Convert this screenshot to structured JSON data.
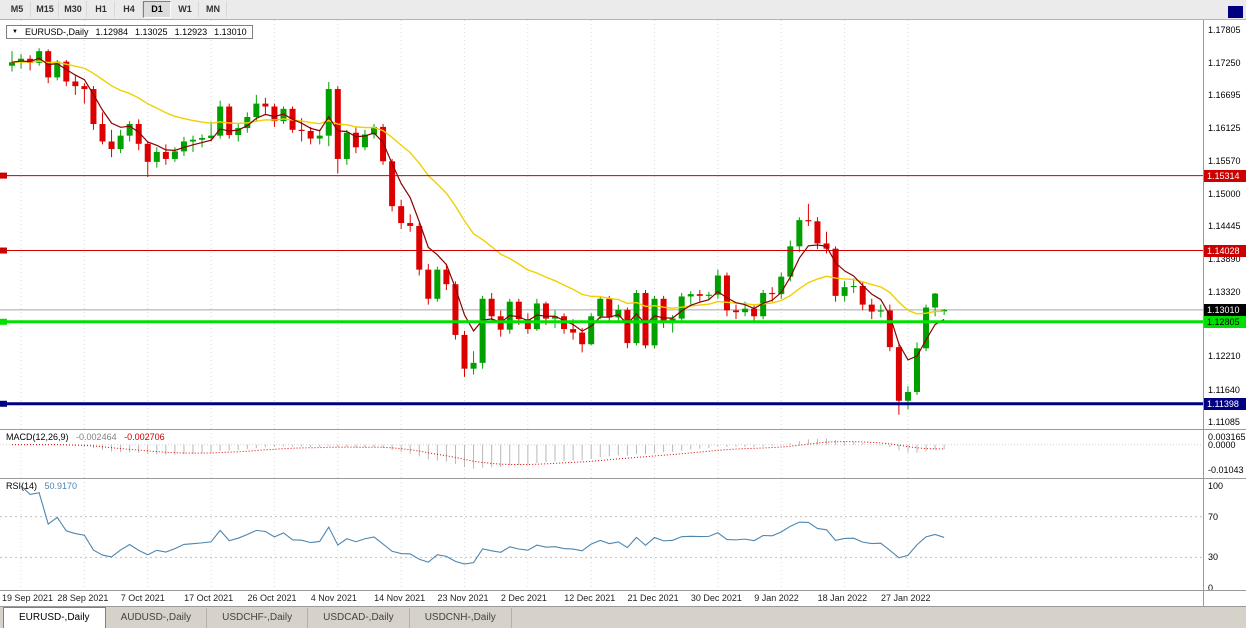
{
  "colors": {
    "up": "#00a000",
    "down": "#dd0000",
    "ma_fast": "#8b0000",
    "ma_slow": "#f0d000",
    "grid": "#d9d9d9",
    "cur_line": "#a8a8a8",
    "macd_hist": "#b8b8b8",
    "macd_signal": "#e00000",
    "rsi_line": "#4d86b0",
    "guide": "#c0c0c0"
  },
  "toolbar": {
    "timeframes": [
      "M5",
      "M15",
      "M30",
      "H1",
      "H4",
      "D1",
      "W1",
      "MN"
    ],
    "active": "D1"
  },
  "chart": {
    "symbol": "EURUSD-,Daily",
    "open": "1.12984",
    "high": "1.13025",
    "low": "1.12923",
    "close": "1.13010",
    "y_labels": [
      {
        "label": "1.17805",
        "v": 1.17805
      },
      {
        "label": "1.17250",
        "v": 1.1725
      },
      {
        "label": "1.16695",
        "v": 1.16695
      },
      {
        "label": "1.16125",
        "v": 1.16125
      },
      {
        "label": "1.15570",
        "v": 1.1557
      },
      {
        "label": "1.15000",
        "v": 1.15
      },
      {
        "label": "1.14445",
        "v": 1.14445
      },
      {
        "label": "1.13890",
        "v": 1.1389
      },
      {
        "label": "1.13320",
        "v": 1.1332
      },
      {
        "label": "1.12210",
        "v": 1.1221
      },
      {
        "label": "1.11640",
        "v": 1.1164
      },
      {
        "label": "1.11085",
        "v": 1.11085
      }
    ],
    "levels": [
      {
        "value": 1.15314,
        "label": "1.15314",
        "type": "resistance",
        "color": "#cc0000",
        "text": "#ffffff",
        "width": 1
      },
      {
        "value": 1.14028,
        "label": "1.14028",
        "type": "resistance",
        "color": "#cc0000",
        "text": "#ffffff",
        "width": 1
      },
      {
        "value": 1.12805,
        "label": "1.12805",
        "type": "support",
        "color": "#00e000",
        "text": "#000000",
        "width": 3
      },
      {
        "value": 1.11398,
        "label": "1.11398",
        "type": "support",
        "color": "#000080",
        "text": "#ffffff",
        "width": 3
      }
    ],
    "current": {
      "value": 1.1301,
      "label": "1.13010",
      "bg": "#000000",
      "text": "#ffffff"
    },
    "x_labels": [
      {
        "label": "19 Sep 2021",
        "i": 1
      },
      {
        "label": "28 Sep 2021",
        "i": 8
      },
      {
        "label": "7 Oct 2021",
        "i": 15
      },
      {
        "label": "17 Oct 2021",
        "i": 22
      },
      {
        "label": "26 Oct 2021",
        "i": 29
      },
      {
        "label": "4 Nov 2021",
        "i": 36
      },
      {
        "label": "14 Nov 2021",
        "i": 43
      },
      {
        "label": "23 Nov 2021",
        "i": 50
      },
      {
        "label": "2 Dec 2021",
        "i": 57
      },
      {
        "label": "12 Dec 2021",
        "i": 64
      },
      {
        "label": "21 Dec 2021",
        "i": 71
      },
      {
        "label": "30 Dec 2021",
        "i": 78
      },
      {
        "label": "9 Jan 2022",
        "i": 85
      },
      {
        "label": "18 Jan 2022",
        "i": 92
      },
      {
        "label": "27 Jan 2022",
        "i": 99
      }
    ],
    "candles": [
      [
        1.172,
        1.1745,
        1.171,
        1.1726
      ],
      [
        1.1726,
        1.174,
        1.1715,
        1.1732
      ],
      [
        1.1732,
        1.1738,
        1.1712,
        1.1725
      ],
      [
        1.1725,
        1.175,
        1.172,
        1.1745
      ],
      [
        1.1745,
        1.1748,
        1.169,
        1.17
      ],
      [
        1.17,
        1.173,
        1.1695,
        1.1727
      ],
      [
        1.1727,
        1.173,
        1.1685,
        1.1693
      ],
      [
        1.1693,
        1.1705,
        1.167,
        1.1685
      ],
      [
        1.1685,
        1.169,
        1.1655,
        1.168
      ],
      [
        1.168,
        1.1685,
        1.161,
        1.162
      ],
      [
        1.162,
        1.164,
        1.1585,
        1.159
      ],
      [
        1.159,
        1.161,
        1.1563,
        1.1577
      ],
      [
        1.1577,
        1.161,
        1.157,
        1.16
      ],
      [
        1.16,
        1.1625,
        1.159,
        1.162
      ],
      [
        1.162,
        1.1628,
        1.1575,
        1.1586
      ],
      [
        1.1586,
        1.159,
        1.1529,
        1.1555
      ],
      [
        1.1555,
        1.158,
        1.1545,
        1.1572
      ],
      [
        1.1572,
        1.1585,
        1.155,
        1.156
      ],
      [
        1.156,
        1.158,
        1.1555,
        1.1573
      ],
      [
        1.1573,
        1.1598,
        1.1565,
        1.159
      ],
      [
        1.159,
        1.16,
        1.1572,
        1.1593
      ],
      [
        1.1593,
        1.1602,
        1.158,
        1.1596
      ],
      [
        1.1596,
        1.1624,
        1.159,
        1.16
      ],
      [
        1.16,
        1.166,
        1.1595,
        1.165
      ],
      [
        1.165,
        1.1655,
        1.1595,
        1.1601
      ],
      [
        1.1601,
        1.1622,
        1.159,
        1.1613
      ],
      [
        1.1613,
        1.164,
        1.1605,
        1.1632
      ],
      [
        1.1632,
        1.167,
        1.1625,
        1.1655
      ],
      [
        1.1655,
        1.1665,
        1.1635,
        1.165
      ],
      [
        1.165,
        1.1655,
        1.1615,
        1.1625
      ],
      [
        1.1625,
        1.165,
        1.162,
        1.1646
      ],
      [
        1.1646,
        1.165,
        1.1605,
        1.161
      ],
      [
        1.161,
        1.163,
        1.159,
        1.1608
      ],
      [
        1.1608,
        1.1615,
        1.1585,
        1.1595
      ],
      [
        1.1595,
        1.161,
        1.1585,
        1.16
      ],
      [
        1.16,
        1.1692,
        1.1582,
        1.168
      ],
      [
        1.168,
        1.1685,
        1.1535,
        1.156
      ],
      [
        1.156,
        1.161,
        1.155,
        1.1605
      ],
      [
        1.1605,
        1.1615,
        1.157,
        1.158
      ],
      [
        1.158,
        1.161,
        1.1575,
        1.1602
      ],
      [
        1.1602,
        1.162,
        1.1595,
        1.1615
      ],
      [
        1.1615,
        1.162,
        1.155,
        1.1556
      ],
      [
        1.1556,
        1.156,
        1.147,
        1.1479
      ],
      [
        1.1479,
        1.149,
        1.144,
        1.145
      ],
      [
        1.145,
        1.1465,
        1.1435,
        1.1445
      ],
      [
        1.1445,
        1.145,
        1.136,
        1.137
      ],
      [
        1.137,
        1.138,
        1.131,
        1.132
      ],
      [
        1.132,
        1.1375,
        1.1315,
        1.137
      ],
      [
        1.137,
        1.138,
        1.1335,
        1.1345
      ],
      [
        1.1345,
        1.135,
        1.125,
        1.1258
      ],
      [
        1.1258,
        1.1265,
        1.1186,
        1.12
      ],
      [
        1.12,
        1.123,
        1.119,
        1.121
      ],
      [
        1.121,
        1.1325,
        1.12,
        1.132
      ],
      [
        1.132,
        1.133,
        1.128,
        1.129
      ],
      [
        1.129,
        1.13,
        1.1255,
        1.1267
      ],
      [
        1.1267,
        1.132,
        1.126,
        1.1315
      ],
      [
        1.1315,
        1.132,
        1.1275,
        1.1285
      ],
      [
        1.1285,
        1.1295,
        1.126,
        1.1268
      ],
      [
        1.1268,
        1.132,
        1.1265,
        1.1312
      ],
      [
        1.1312,
        1.1315,
        1.1275,
        1.1286
      ],
      [
        1.1286,
        1.13,
        1.127,
        1.129
      ],
      [
        1.129,
        1.1295,
        1.126,
        1.1268
      ],
      [
        1.1268,
        1.1285,
        1.125,
        1.1262
      ],
      [
        1.1262,
        1.127,
        1.1228,
        1.1242
      ],
      [
        1.1242,
        1.1295,
        1.124,
        1.129
      ],
      [
        1.129,
        1.1325,
        1.1285,
        1.132
      ],
      [
        1.132,
        1.1325,
        1.128,
        1.1288
      ],
      [
        1.1288,
        1.131,
        1.128,
        1.1301
      ],
      [
        1.1301,
        1.1305,
        1.1235,
        1.1244
      ],
      [
        1.1244,
        1.1335,
        1.124,
        1.133
      ],
      [
        1.133,
        1.1335,
        1.1235,
        1.124
      ],
      [
        1.124,
        1.1325,
        1.1235,
        1.132
      ],
      [
        1.132,
        1.1325,
        1.127,
        1.128
      ],
      [
        1.128,
        1.1292,
        1.1262,
        1.1286
      ],
      [
        1.1286,
        1.133,
        1.128,
        1.1324
      ],
      [
        1.1324,
        1.1333,
        1.131,
        1.1328
      ],
      [
        1.1328,
        1.1335,
        1.1315,
        1.1325
      ],
      [
        1.1325,
        1.1332,
        1.1318,
        1.1327
      ],
      [
        1.1327,
        1.137,
        1.132,
        1.136
      ],
      [
        1.136,
        1.1365,
        1.129,
        1.13
      ],
      [
        1.13,
        1.131,
        1.1285,
        1.1297
      ],
      [
        1.1297,
        1.1315,
        1.129,
        1.1303
      ],
      [
        1.1303,
        1.131,
        1.128,
        1.129
      ],
      [
        1.129,
        1.1335,
        1.1285,
        1.133
      ],
      [
        1.133,
        1.134,
        1.1315,
        1.1328
      ],
      [
        1.1328,
        1.1365,
        1.132,
        1.1358
      ],
      [
        1.1358,
        1.142,
        1.135,
        1.141
      ],
      [
        1.141,
        1.146,
        1.14,
        1.1455
      ],
      [
        1.1455,
        1.1483,
        1.1445,
        1.1453
      ],
      [
        1.1453,
        1.146,
        1.1405,
        1.1415
      ],
      [
        1.1415,
        1.1435,
        1.1398,
        1.1406
      ],
      [
        1.1406,
        1.141,
        1.1315,
        1.1325
      ],
      [
        1.1325,
        1.135,
        1.1315,
        1.134
      ],
      [
        1.134,
        1.1355,
        1.133,
        1.1342
      ],
      [
        1.1342,
        1.135,
        1.13,
        1.131
      ],
      [
        1.131,
        1.132,
        1.1285,
        1.1298
      ],
      [
        1.1298,
        1.131,
        1.1288,
        1.13
      ],
      [
        1.13,
        1.131,
        1.123,
        1.1237
      ],
      [
        1.1237,
        1.1245,
        1.1121,
        1.1145
      ],
      [
        1.1145,
        1.117,
        1.113,
        1.116
      ],
      [
        1.116,
        1.1245,
        1.1155,
        1.1235
      ],
      [
        1.1235,
        1.131,
        1.123,
        1.1305
      ],
      [
        1.1305,
        1.133,
        1.129,
        1.1329
      ],
      [
        1.12984,
        1.13025,
        1.12923,
        1.1301
      ]
    ]
  },
  "macd": {
    "name": "MACD(12,26,9)",
    "value": "-0.002464",
    "signal": "-0.002706",
    "axis": [
      {
        "label": "0.003165",
        "v": 0.003165
      },
      {
        "label": "0.0000",
        "v": 0
      },
      {
        "label": "-0.01043",
        "v": -0.01043
      }
    ]
  },
  "rsi": {
    "name": "RSI(14)",
    "value": "50.9170",
    "axis": [
      {
        "label": "100",
        "v": 100
      },
      {
        "label": "70",
        "v": 70
      },
      {
        "label": "30",
        "v": 30
      },
      {
        "label": "0",
        "v": 0
      }
    ],
    "guides": [
      70,
      30
    ]
  },
  "tabs": [
    {
      "label": "EURUSD-,Daily",
      "active": true
    },
    {
      "label": "AUDUSD-,Daily",
      "active": false
    },
    {
      "label": "USDCHF-,Daily",
      "active": false
    },
    {
      "label": "USDCAD-,Daily",
      "active": false
    },
    {
      "label": "USDCNH-,Daily",
      "active": false
    }
  ]
}
